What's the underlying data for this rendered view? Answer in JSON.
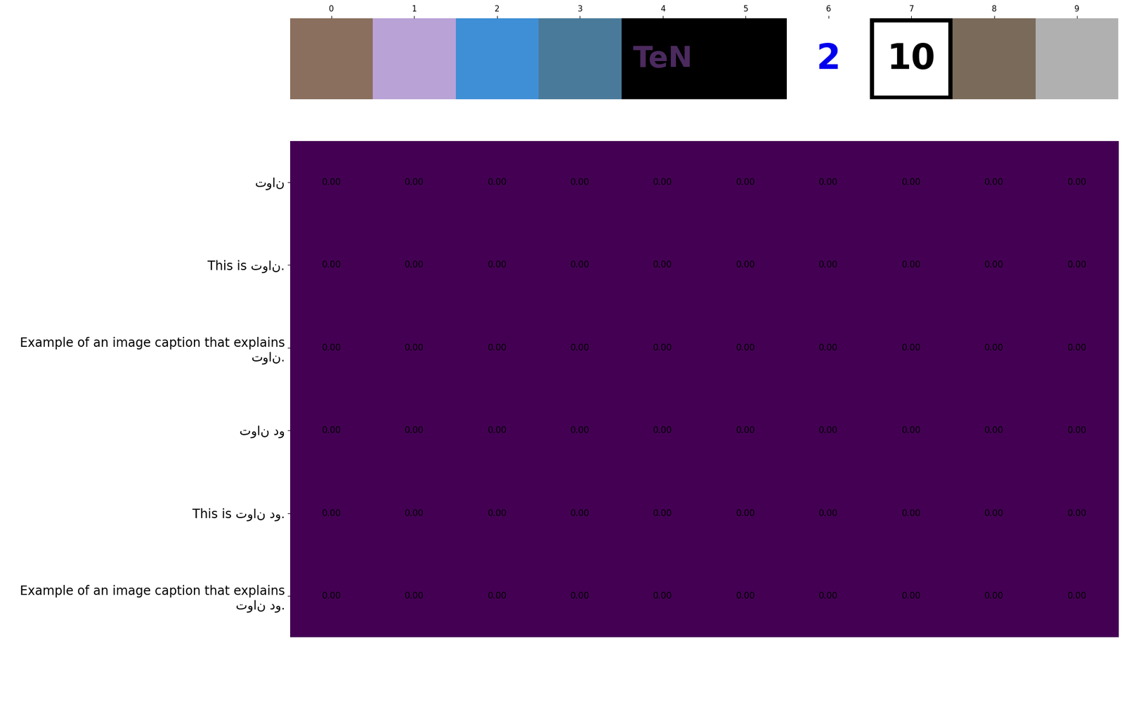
{
  "chart_data": {
    "type": "heatmap",
    "columns": [
      0,
      1,
      2,
      3,
      4,
      5,
      6,
      7,
      8,
      9
    ],
    "images": [
      {
        "text": null
      },
      {
        "text": null
      },
      {
        "text": null
      },
      {
        "text": null
      },
      {
        "text": "TeN"
      },
      {
        "text": null
      },
      {
        "text": "2"
      },
      {
        "text": "10"
      },
      {
        "text": null
      },
      {
        "text": null
      }
    ],
    "rows": [
      "توان",
      "This is توان.",
      "Example of an image caption that explains توان.",
      "توان دو",
      "This is توان دو.",
      "Example of an image caption that explains توان دو."
    ],
    "cells": [
      [
        0,
        0,
        0,
        0,
        0,
        0,
        0,
        0,
        0,
        0
      ],
      [
        0,
        0,
        0,
        0,
        0,
        0,
        0,
        0,
        0,
        0
      ],
      [
        0,
        0,
        0,
        0,
        0,
        0,
        0,
        0,
        0,
        0
      ],
      [
        0,
        0,
        0,
        0,
        0,
        0,
        0,
        0,
        0,
        0
      ],
      [
        0,
        0,
        0,
        0,
        0,
        0,
        0,
        0,
        0,
        0
      ],
      [
        0,
        0,
        0,
        0,
        0,
        0,
        0,
        0,
        0,
        0
      ]
    ],
    "value_labels": [
      [
        "0.00",
        "0.00",
        "0.00",
        "0.00",
        "0.00",
        "0.00",
        "0.00",
        "0.00",
        "0.00",
        "0.00"
      ],
      [
        "0.00",
        "0.00",
        "0.00",
        "0.00",
        "0.00",
        "0.00",
        "0.00",
        "0.00",
        "0.00",
        "0.00"
      ],
      [
        "0.00",
        "0.00",
        "0.00",
        "0.00",
        "0.00",
        "0.00",
        "0.00",
        "0.00",
        "0.00",
        "0.00"
      ],
      [
        "0.00",
        "0.00",
        "0.00",
        "0.00",
        "0.00",
        "0.00",
        "0.00",
        "0.00",
        "0.00",
        "0.00"
      ],
      [
        "0.00",
        "0.00",
        "0.00",
        "0.00",
        "0.00",
        "0.00",
        "0.00",
        "0.00",
        "0.00",
        "0.00"
      ],
      [
        "0.00",
        "0.00",
        "0.00",
        "0.00",
        "0.00",
        "0.00",
        "0.00",
        "0.00",
        "0.00",
        "0.00"
      ]
    ]
  }
}
